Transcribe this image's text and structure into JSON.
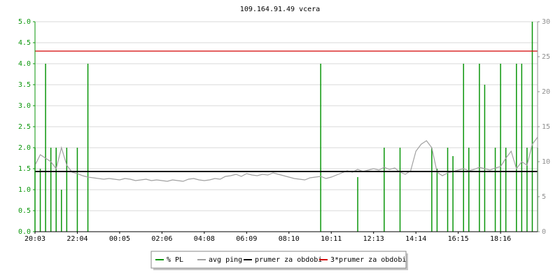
{
  "chart_data": {
    "type": "line",
    "title": "109.164.91.49 vcera",
    "categories": [
      "20:03",
      null,
      null,
      null,
      null,
      null,
      null,
      null,
      "22:04",
      null,
      null,
      null,
      null,
      null,
      null,
      null,
      "00:05",
      null,
      null,
      null,
      null,
      null,
      null,
      null,
      "02:06",
      null,
      null,
      null,
      null,
      null,
      null,
      null,
      "04:08",
      null,
      null,
      null,
      null,
      null,
      null,
      null,
      "06:09",
      null,
      null,
      null,
      null,
      null,
      null,
      null,
      "08:10",
      null,
      null,
      null,
      null,
      null,
      null,
      null,
      "10:11",
      null,
      null,
      null,
      null,
      null,
      null,
      null,
      "12:13",
      null,
      null,
      null,
      null,
      null,
      null,
      null,
      "14:14",
      null,
      null,
      null,
      null,
      null,
      null,
      null,
      "16:15",
      null,
      null,
      null,
      null,
      null,
      null,
      null,
      "18:16",
      null,
      null,
      null,
      null,
      null,
      null,
      null
    ],
    "ylim": [
      0,
      5
    ],
    "yticks": [
      {
        "value": 0,
        "label": "0.0"
      },
      0.5,
      {
        "value": 1,
        "label": "1.0"
      },
      1.5,
      {
        "value": 2,
        "label": "2.0"
      },
      2.5,
      {
        "value": 3,
        "label": "3.0"
      },
      3.5,
      {
        "value": 4,
        "label": "4.0"
      },
      4.5,
      {
        "value": 5,
        "label": "5.0"
      }
    ],
    "y2lim": [
      0,
      30
    ],
    "y2ticks": [
      0,
      5,
      10,
      15,
      20,
      25,
      30
    ],
    "grid": true,
    "series": [
      {
        "name": "% PL",
        "color": "#0a960a",
        "style": "bar",
        "values": [
          2,
          1.5,
          4,
          2,
          2,
          1,
          2,
          0,
          2,
          0,
          4,
          0,
          0,
          0,
          0,
          0,
          0,
          0,
          0,
          0,
          0,
          0,
          0,
          0,
          0,
          0,
          0,
          0,
          0,
          0,
          0,
          0,
          0,
          0,
          0,
          0,
          0,
          0,
          0,
          0,
          0,
          0,
          0,
          0,
          0,
          0,
          0,
          0,
          0,
          0,
          0,
          0,
          0,
          0,
          4,
          0,
          0,
          0,
          0,
          0,
          0,
          1.3,
          0,
          0,
          0,
          0,
          2,
          0,
          0,
          2,
          0,
          0,
          0,
          0,
          0,
          2,
          1.5,
          0,
          2,
          1.8,
          0,
          4,
          2,
          0,
          4,
          3.5,
          0,
          2,
          4,
          2,
          0,
          4,
          4,
          2,
          5,
          2
        ]
      },
      {
        "name": "avg ping",
        "color": "#a0a0a0",
        "style": "line",
        "axis": "y2",
        "values": [
          9.5,
          11,
          10.5,
          10,
          9,
          12,
          9.5,
          8.5,
          8.3,
          8.0,
          7.8,
          7.7,
          7.6,
          7.5,
          7.6,
          7.5,
          7.4,
          7.6,
          7.5,
          7.3,
          7.4,
          7.5,
          7.3,
          7.4,
          7.3,
          7.2,
          7.4,
          7.3,
          7.2,
          7.5,
          7.6,
          7.4,
          7.3,
          7.4,
          7.6,
          7.5,
          7.9,
          8.0,
          8.2,
          7.9,
          8.3,
          8.1,
          8.0,
          8.2,
          8.1,
          8.4,
          8.2,
          8.0,
          7.8,
          7.6,
          7.5,
          7.4,
          7.7,
          7.8,
          7.9,
          7.6,
          7.8,
          8.1,
          8.4,
          8.7,
          8.5,
          8.9,
          8.6,
          8.8,
          9.0,
          8.8,
          9.2,
          8.9,
          9.1,
          8.5,
          8.2,
          8.7,
          11.5,
          12.5,
          13.0,
          12.0,
          8.5,
          8.0,
          8.4,
          8.6,
          8.8,
          9.0,
          8.7,
          8.9,
          9.2,
          9.0,
          8.8,
          9.1,
          9.3,
          10.5,
          11.5,
          9.0,
          10.0,
          9.5,
          12.5,
          13.5
        ]
      },
      {
        "name": "prumer za obdobi",
        "color": "#000000",
        "style": "hline",
        "axis": "y2",
        "value": 8.6
      },
      {
        "name": "3*prumer za obdobi",
        "color": "#d40000",
        "style": "hline",
        "axis": "y2",
        "value": 25.8
      }
    ]
  }
}
